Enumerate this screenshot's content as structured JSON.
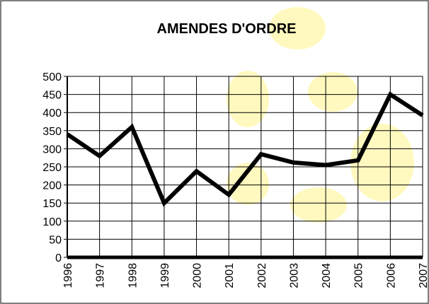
{
  "chart_data": {
    "type": "line",
    "title": "AMENDES D'ORDRE",
    "categories": [
      "1996",
      "1997",
      "1998",
      "1999",
      "2000",
      "2001",
      "2002",
      "2003",
      "2004",
      "2005",
      "2006",
      "2007"
    ],
    "series": [
      {
        "name": null,
        "color": "#000000",
        "values": [
          340,
          280,
          360,
          150,
          238,
          173,
          285,
          262,
          255,
          268,
          450,
          392
        ]
      }
    ],
    "ylim": [
      0,
      500
    ],
    "yticks": [
      0,
      50,
      100,
      150,
      200,
      250,
      300,
      350,
      400,
      450,
      500
    ],
    "grid": true
  }
}
